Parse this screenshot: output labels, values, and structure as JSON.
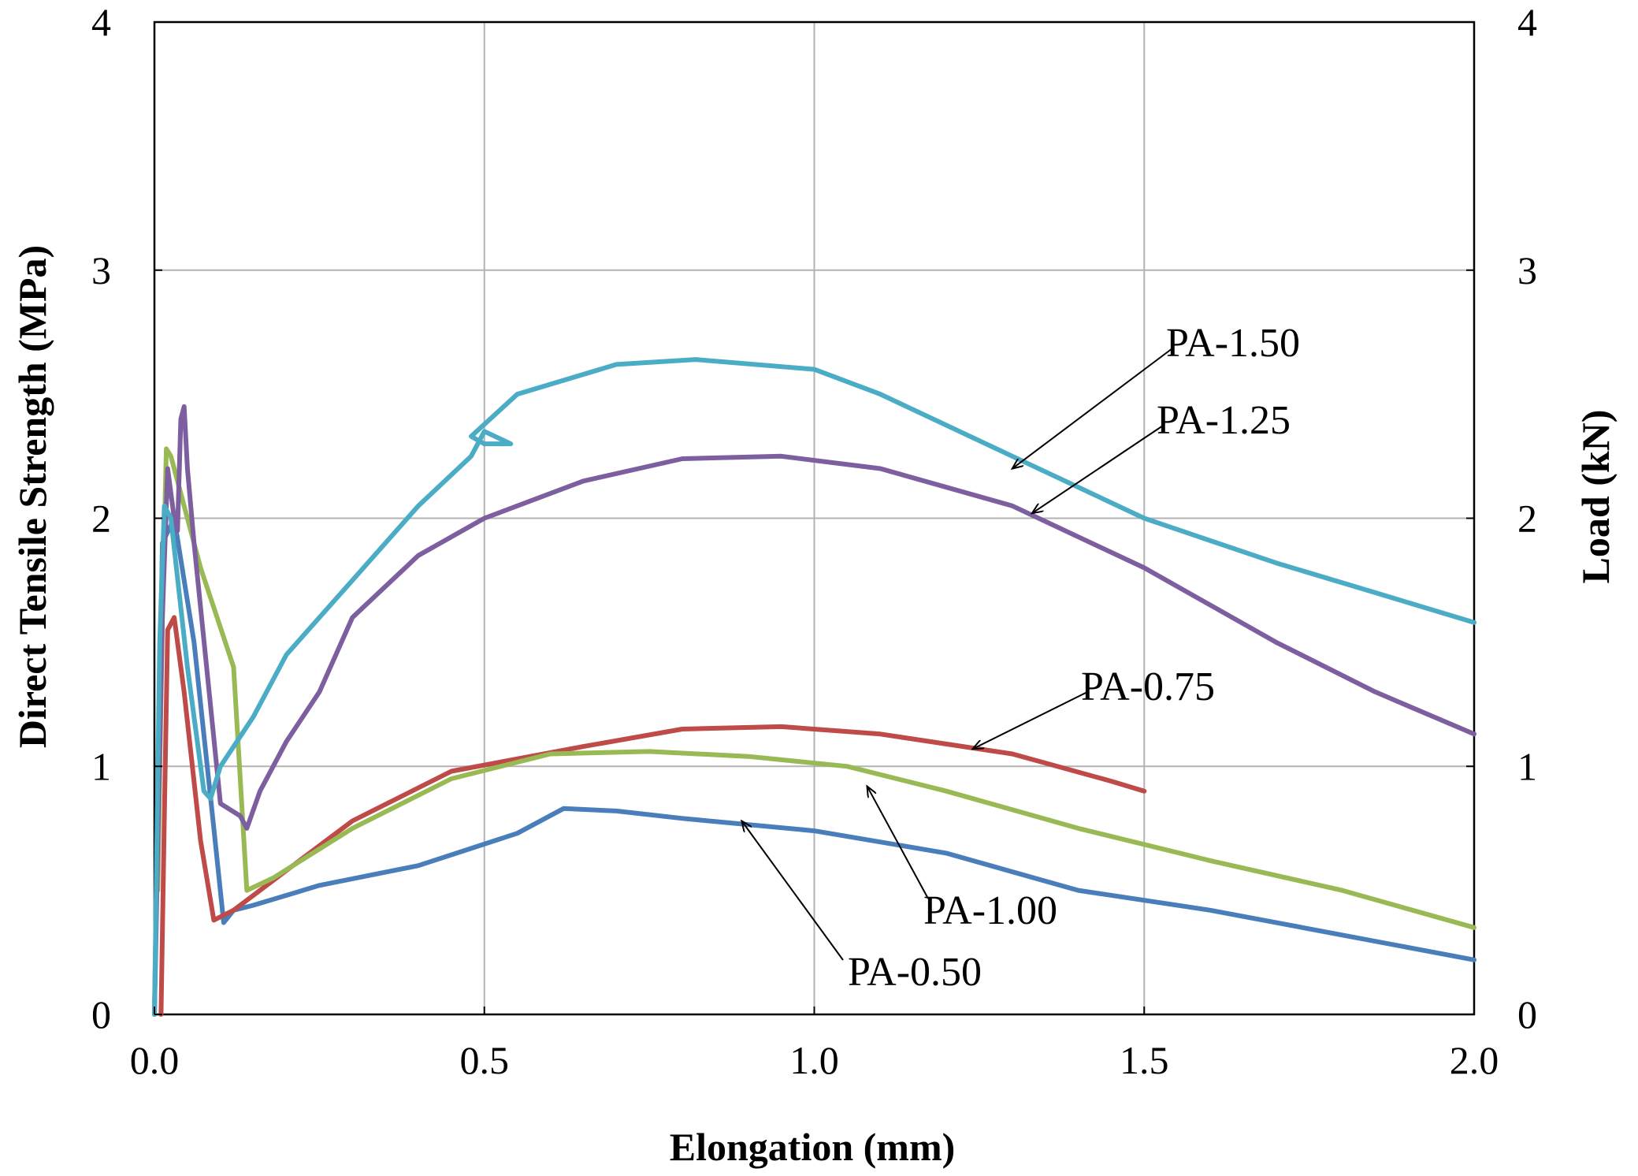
{
  "chart_data": {
    "type": "line",
    "title": "",
    "xlabel": "Elongation (mm)",
    "ylabel": "Direct Tensile Strength (MPa)",
    "y2label": "Load (kN)",
    "xlim": [
      0,
      2.0
    ],
    "ylim": [
      0,
      4
    ],
    "y2lim": [
      0,
      4
    ],
    "grid": true,
    "x_ticks": [
      "0.0",
      "0.5",
      "1.0",
      "1.5",
      "2.0"
    ],
    "y_ticks": [
      "0",
      "1",
      "2",
      "3",
      "4"
    ],
    "y2_ticks": [
      "0",
      "1",
      "2",
      "3",
      "4"
    ],
    "series": [
      {
        "name": "PA-0.50",
        "color": "#4a7ebb",
        "x": [
          0.0,
          0.005,
          0.012,
          0.03,
          0.06,
          0.09,
          0.105,
          0.12,
          0.15,
          0.25,
          0.4,
          0.55,
          0.62,
          0.7,
          0.8,
          1.0,
          1.2,
          1.4,
          1.6,
          1.8,
          2.0
        ],
        "y": [
          0.0,
          0.8,
          1.9,
          2.0,
          1.5,
          0.75,
          0.37,
          0.42,
          0.44,
          0.52,
          0.6,
          0.73,
          0.83,
          0.82,
          0.79,
          0.74,
          0.65,
          0.5,
          0.42,
          0.32,
          0.22
        ]
      },
      {
        "name": "PA-0.75",
        "color": "#be4b48",
        "x": [
          0.01,
          0.015,
          0.02,
          0.03,
          0.045,
          0.07,
          0.09,
          0.12,
          0.2,
          0.3,
          0.45,
          0.65,
          0.8,
          0.95,
          1.1,
          1.3,
          1.45,
          1.5
        ],
        "y": [
          0.0,
          0.8,
          1.55,
          1.6,
          1.3,
          0.7,
          0.38,
          0.42,
          0.58,
          0.78,
          0.98,
          1.08,
          1.15,
          1.16,
          1.13,
          1.05,
          0.94,
          0.9
        ]
      },
      {
        "name": "PA-1.00",
        "color": "#98b954",
        "x": [
          0.005,
          0.012,
          0.018,
          0.025,
          0.04,
          0.07,
          0.12,
          0.13,
          0.14,
          0.18,
          0.3,
          0.45,
          0.6,
          0.75,
          0.9,
          1.05,
          1.2,
          1.4,
          1.6,
          1.8,
          2.0
        ],
        "y": [
          0.5,
          1.6,
          2.28,
          2.25,
          2.1,
          1.8,
          1.4,
          0.95,
          0.5,
          0.55,
          0.75,
          0.95,
          1.05,
          1.06,
          1.04,
          1.0,
          0.9,
          0.75,
          0.62,
          0.5,
          0.35
        ]
      },
      {
        "name": "PA-1.25",
        "color": "#7d5fa0",
        "x": [
          0.0,
          0.012,
          0.02,
          0.03,
          0.035,
          0.04,
          0.045,
          0.05,
          0.06,
          0.1,
          0.13,
          0.14,
          0.16,
          0.2,
          0.25,
          0.3,
          0.4,
          0.5,
          0.65,
          0.8,
          0.95,
          1.1,
          1.3,
          1.5,
          1.7,
          1.85,
          2.0
        ],
        "y": [
          0.0,
          1.6,
          2.2,
          2.0,
          1.95,
          2.4,
          2.45,
          2.2,
          1.9,
          0.85,
          0.8,
          0.75,
          0.9,
          1.1,
          1.3,
          1.6,
          1.85,
          2.0,
          2.15,
          2.24,
          2.25,
          2.2,
          2.05,
          1.8,
          1.5,
          1.3,
          1.13
        ]
      },
      {
        "name": "PA-1.50",
        "color": "#4bacc6",
        "x": [
          0.0,
          0.008,
          0.015,
          0.025,
          0.05,
          0.075,
          0.085,
          0.1,
          0.15,
          0.2,
          0.3,
          0.4,
          0.48,
          0.5,
          0.54,
          0.5,
          0.48,
          0.55,
          0.7,
          0.82,
          1.0,
          1.1,
          1.3,
          1.5,
          1.7,
          1.85,
          2.0
        ],
        "y": [
          0.0,
          1.5,
          2.05,
          2.0,
          1.4,
          0.9,
          0.87,
          1.0,
          1.2,
          1.45,
          1.75,
          2.05,
          2.25,
          2.35,
          2.3,
          2.3,
          2.33,
          2.5,
          2.62,
          2.64,
          2.6,
          2.5,
          2.25,
          2.0,
          1.82,
          1.7,
          1.58
        ]
      }
    ],
    "annotations": [
      {
        "text": "PA-1.50",
        "series": "PA-1.50",
        "x": 1.3,
        "y": 2.2
      },
      {
        "text": "PA-1.25",
        "series": "PA-1.25",
        "x": 1.33,
        "y": 2.02
      },
      {
        "text": "PA-0.75",
        "series": "PA-0.75",
        "x": 1.24,
        "y": 1.07
      },
      {
        "text": "PA-1.00",
        "series": "PA-1.00",
        "x": 1.08,
        "y": 0.92
      },
      {
        "text": "PA-0.50",
        "series": "PA-0.50",
        "x": 0.89,
        "y": 0.78
      }
    ]
  }
}
